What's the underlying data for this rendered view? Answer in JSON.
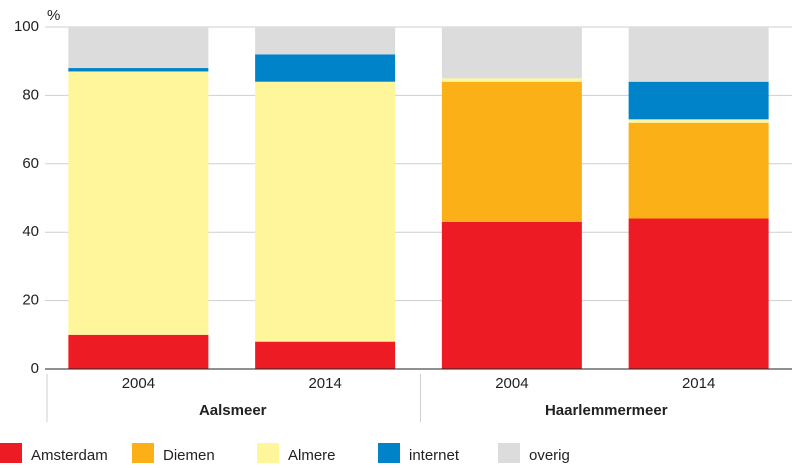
{
  "chart_data": {
    "type": "stacked-bar",
    "y_label": "%",
    "categories": [
      "2004",
      "2014",
      "2004",
      "2014"
    ],
    "groups": [
      "Aalsmeer",
      "Haarlemmermeer"
    ],
    "series": [
      {
        "name": "Amsterdam",
        "color": "#ed1c24",
        "values": [
          10,
          8,
          43,
          44
        ]
      },
      {
        "name": "Diemen",
        "color": "#fbb017",
        "values": [
          0,
          0,
          41,
          28
        ]
      },
      {
        "name": "Almere",
        "color": "#fff59b",
        "values": [
          77,
          76,
          1,
          1
        ]
      },
      {
        "name": "internet",
        "color": "#0083c9",
        "values": [
          1,
          8,
          0,
          11
        ]
      },
      {
        "name": "overig",
        "color": "#dcdcdd",
        "values": [
          12,
          8,
          15,
          16
        ]
      }
    ],
    "ylim": [
      0,
      100
    ],
    "yticks": [
      0,
      20,
      40,
      60,
      80,
      100
    ],
    "grid": true,
    "legend": "bottom"
  }
}
